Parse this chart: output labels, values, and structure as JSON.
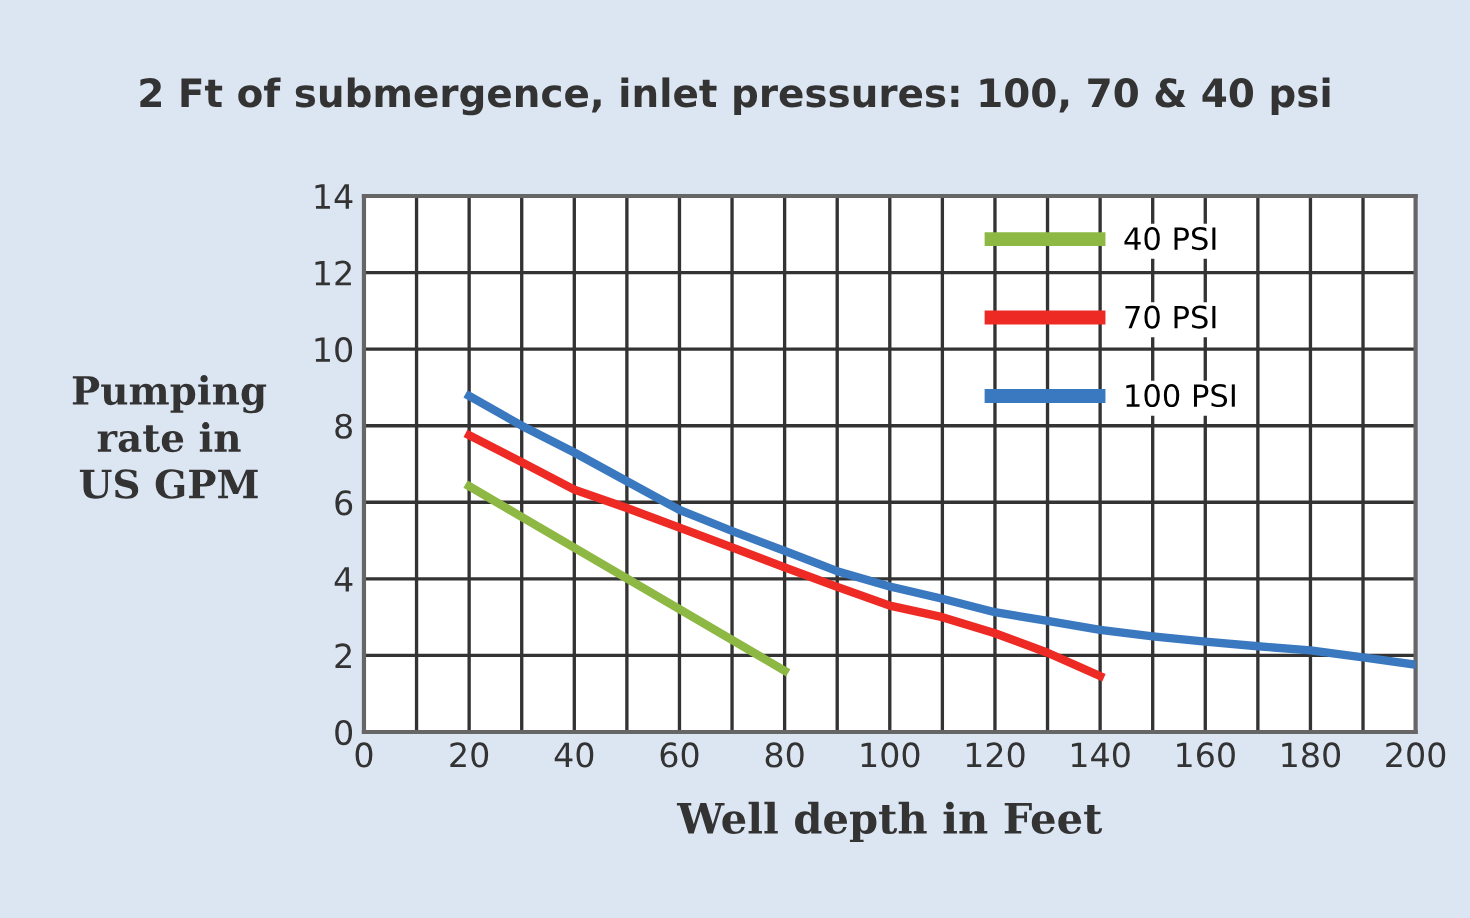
{
  "chart_data": {
    "type": "line",
    "title": "2 Ft of submergence, inlet pressures: 100, 70 & 40 psi",
    "xlabel": "Well depth in Feet",
    "ylabel": "Pumping\nrate in\nUS GPM",
    "series": [
      {
        "name": "40 PSI",
        "color": "#8db843",
        "x": [
          20,
          80
        ],
        "values": [
          6.42,
          1.6
        ]
      },
      {
        "name": "70 PSI",
        "color": "#ee2a24",
        "x": [
          20,
          30,
          40,
          50,
          60,
          70,
          80,
          90,
          100,
          110,
          120,
          130,
          140
        ],
        "values": [
          7.75,
          7.05,
          6.33,
          5.85,
          5.34,
          4.82,
          4.3,
          3.79,
          3.3,
          3.0,
          2.58,
          2.07,
          1.46
        ]
      },
      {
        "name": "100 PSI",
        "color": "#3a78c0",
        "x": [
          20,
          30,
          40,
          50,
          60,
          70,
          80,
          90,
          100,
          110,
          120,
          130,
          140,
          150,
          160,
          170,
          180,
          190,
          200
        ],
        "values": [
          8.78,
          8.0,
          7.3,
          6.55,
          5.8,
          5.25,
          4.73,
          4.2,
          3.8,
          3.48,
          3.13,
          2.9,
          2.67,
          2.5,
          2.36,
          2.24,
          2.13,
          1.95,
          1.76
        ]
      }
    ],
    "xlim": [
      0,
      200
    ],
    "xticks": [
      0,
      20,
      40,
      60,
      80,
      100,
      120,
      140,
      160,
      180,
      200
    ],
    "ylim": [
      0,
      14
    ],
    "yticks": [
      0,
      2,
      4,
      6,
      8,
      10,
      12,
      14
    ],
    "grid": true,
    "legend": "top right",
    "line_style": "solid",
    "marker": "none"
  }
}
